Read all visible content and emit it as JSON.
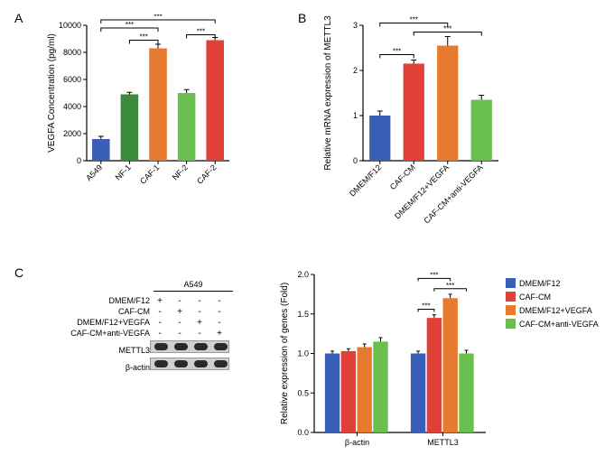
{
  "palette": {
    "blue": "#3a5fb6",
    "darkgreen": "#3b8a3e",
    "orange": "#e67a2e",
    "lightgreen": "#6bbf4f",
    "red": "#e04038"
  },
  "panelA": {
    "label": "A",
    "ylabel": "VEGFA Concentration (pg/ml)",
    "ylim": [
      0,
      10000
    ],
    "yticks": [
      0,
      2000,
      4000,
      6000,
      8000,
      10000
    ],
    "categories": [
      "A549",
      "NF-1",
      "CAF-1",
      "NF-2",
      "CAF-2"
    ],
    "colors": [
      "blue",
      "darkgreen",
      "orange",
      "lightgreen",
      "red"
    ],
    "values": [
      1600,
      4900,
      8300,
      5000,
      8900
    ],
    "errors": [
      200,
      150,
      300,
      250,
      200
    ],
    "sig": [
      {
        "from": 1,
        "to": 2,
        "y": 8900,
        "label": "***"
      },
      {
        "from": 3,
        "to": 4,
        "y": 9300,
        "label": "***"
      },
      {
        "from": 0,
        "to": 2,
        "y": 9800,
        "label": "***"
      },
      {
        "from": 0,
        "to": 4,
        "y": 10400,
        "label": "***"
      }
    ]
  },
  "panelB": {
    "label": "B",
    "ylabel": "Relative mRNA expression of METTL3",
    "ylim": [
      0,
      3
    ],
    "yticks": [
      0,
      1,
      2,
      3
    ],
    "categories": [
      "DMEM/F12",
      "CAF-CM",
      "DMEM/F12+VEGFA",
      "CAF-CM+anti-VEGFA"
    ],
    "colors": [
      "blue",
      "red",
      "orange",
      "lightgreen"
    ],
    "values": [
      1.0,
      2.15,
      2.55,
      1.35
    ],
    "errors": [
      0.1,
      0.08,
      0.2,
      0.1
    ],
    "sig": [
      {
        "from": 0,
        "to": 1,
        "y": 2.35,
        "label": "***"
      },
      {
        "from": 1,
        "to": 3,
        "y": 2.85,
        "label": "***"
      },
      {
        "from": 0,
        "to": 2,
        "y": 3.05,
        "label": "***"
      }
    ]
  },
  "panelC": {
    "label": "C",
    "wb": {
      "cell_line": "A549",
      "conditions": [
        "DMEM/F12",
        "CAF-CM",
        "DMEM/F12+VEGFA",
        "CAF-CM+anti-VEGFA"
      ],
      "matrix": [
        [
          "+",
          "-",
          "-",
          "-"
        ],
        [
          "-",
          "+",
          "-",
          "-"
        ],
        [
          "-",
          "-",
          "+",
          "-"
        ],
        [
          "-",
          "-",
          "-",
          "+"
        ]
      ],
      "bands": [
        "METTL3",
        "β-actin"
      ]
    },
    "chart": {
      "ylabel": "Relative expression of genes (Fold)",
      "ylim": [
        0,
        2.0
      ],
      "yticks": [
        0.0,
        0.5,
        1.0,
        1.5,
        2.0
      ],
      "groups": [
        "β-actin",
        "METTL3"
      ],
      "series": [
        "DMEM/F12",
        "CAF-CM",
        "DMEM/F12+VEGFA",
        "CAF-CM+anti-VEGFA"
      ],
      "colors": [
        "blue",
        "red",
        "orange",
        "lightgreen"
      ],
      "values": [
        [
          1.0,
          1.03,
          1.08,
          1.15
        ],
        [
          1.0,
          1.45,
          1.7,
          1.0
        ]
      ],
      "errors": [
        [
          0.03,
          0.03,
          0.04,
          0.05
        ],
        [
          0.03,
          0.04,
          0.05,
          0.04
        ]
      ],
      "sig": [
        {
          "group": 1,
          "from": 0,
          "to": 1,
          "y": 1.56,
          "label": "***"
        },
        {
          "group": 1,
          "from": 1,
          "to": 3,
          "y": 1.82,
          "label": "***"
        },
        {
          "group": 1,
          "from": 0,
          "to": 2,
          "y": 1.95,
          "label": "***"
        }
      ]
    }
  }
}
